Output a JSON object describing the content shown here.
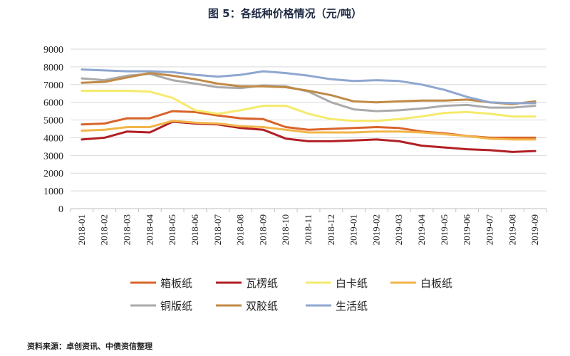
{
  "title": "图 5：各纸种价格情况（元/吨）",
  "source": "资料来源：卓创资讯、中债资信整理",
  "chart_data": {
    "type": "line",
    "title": "图 5：各纸种价格情况（元/吨）",
    "xlabel": "",
    "ylabel": "",
    "ylim": [
      0,
      9000
    ],
    "yticks": [
      0,
      1000,
      2000,
      3000,
      4000,
      5000,
      6000,
      7000,
      8000,
      9000
    ],
    "grid": true,
    "legend_position": "bottom",
    "categories": [
      "2018-01",
      "2018-02",
      "2018-03",
      "2018-04",
      "2018-05",
      "2018-06",
      "2018-07",
      "2018-08",
      "2018-09",
      "2018-10",
      "2018-11",
      "2018-12",
      "2019-01",
      "2019-02",
      "2019-03",
      "2019-04",
      "2019-05",
      "2019-06",
      "2019-07",
      "2019-08",
      "2019-09"
    ],
    "series": [
      {
        "name": "箱板纸",
        "color": "#d9642b",
        "values": [
          4750,
          4800,
          5100,
          5100,
          5500,
          5450,
          5250,
          5100,
          5050,
          4600,
          4450,
          4500,
          4550,
          4600,
          4550,
          4350,
          4250,
          4100,
          4000,
          4000,
          4000
        ]
      },
      {
        "name": "瓦楞纸",
        "color": "#b11f24",
        "values": [
          3900,
          4000,
          4350,
          4300,
          4900,
          4800,
          4750,
          4550,
          4450,
          3950,
          3800,
          3800,
          3850,
          3900,
          3800,
          3550,
          3450,
          3350,
          3300,
          3200,
          3250
        ]
      },
      {
        "name": "白卡纸",
        "color": "#f5ea6c",
        "values": [
          6650,
          6650,
          6650,
          6600,
          6250,
          5550,
          5350,
          5550,
          5800,
          5800,
          5350,
          5050,
          4950,
          4950,
          5050,
          5200,
          5400,
          5450,
          5350,
          5200,
          5200
        ]
      },
      {
        "name": "白板纸",
        "color": "#f2b54a",
        "values": [
          4400,
          4450,
          4600,
          4600,
          4950,
          4850,
          4800,
          4650,
          4600,
          4450,
          4300,
          4300,
          4300,
          4350,
          4350,
          4300,
          4200,
          4100,
          3950,
          3900,
          3900
        ]
      },
      {
        "name": "铜版纸",
        "color": "#aaaaaa",
        "values": [
          7350,
          7250,
          7500,
          7600,
          7250,
          7050,
          6850,
          6800,
          6950,
          6900,
          6600,
          6000,
          5600,
          5500,
          5550,
          5650,
          5800,
          5850,
          5700,
          5700,
          5800
        ]
      },
      {
        "name": "双胶纸",
        "color": "#c08a47",
        "values": [
          7100,
          7150,
          7400,
          7650,
          7500,
          7300,
          7050,
          6900,
          6900,
          6850,
          6650,
          6400,
          6050,
          6000,
          6050,
          6100,
          6100,
          6150,
          6000,
          5900,
          6050
        ]
      },
      {
        "name": "生活纸",
        "color": "#8ea7cf",
        "values": [
          7850,
          7800,
          7750,
          7750,
          7700,
          7550,
          7450,
          7550,
          7750,
          7650,
          7500,
          7300,
          7200,
          7250,
          7200,
          7000,
          6700,
          6300,
          6000,
          5950,
          5950
        ]
      }
    ]
  }
}
